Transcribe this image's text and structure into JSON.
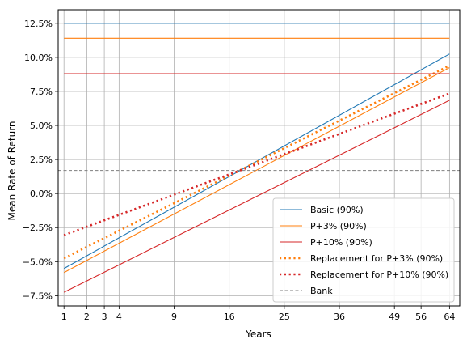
{
  "chart_data": {
    "type": "line",
    "xlabel": "Years",
    "ylabel": "Mean Rate of Return",
    "x_scale": "sqrt",
    "xlim": [
      0.8,
      67
    ],
    "ylim": [
      -8.25,
      13.5
    ],
    "grid": true,
    "legend_position": "lower-right",
    "x_ticks": [
      1,
      2,
      3,
      4,
      9,
      16,
      25,
      36,
      49,
      56,
      64
    ],
    "x_tick_labels": [
      "1",
      "2",
      "3",
      "4",
      "9",
      "16",
      "25",
      "36",
      "49",
      "56",
      "64"
    ],
    "y_ticks": [
      -7.5,
      -5.0,
      -2.5,
      0.0,
      2.5,
      5.0,
      7.5,
      10.0,
      12.5
    ],
    "y_tick_labels": [
      "−7.5%",
      "−5.0%",
      "−2.5%",
      "0.0%",
      "2.5%",
      "5.0%",
      "7.5%",
      "10.0%",
      "12.5%"
    ],
    "series": [
      {
        "name": "Basic (90%)",
        "color": "#1f77b4",
        "style": "solid",
        "x": [
          1,
          64
        ],
        "y": [
          -5.5,
          10.25
        ]
      },
      {
        "name": "P+3% (90%)",
        "color": "#ff7f0e",
        "style": "solid",
        "x": [
          1,
          64
        ],
        "y": [
          -5.8,
          9.25
        ]
      },
      {
        "name": "P+10% (90%)",
        "color": "#d62728",
        "style": "solid",
        "x": [
          1,
          64
        ],
        "y": [
          -7.25,
          6.85
        ]
      },
      {
        "name": "Replacement for P+3% (90%)",
        "color": "#ff7f0e",
        "style": "dotted",
        "x": [
          1,
          64
        ],
        "y": [
          -4.75,
          9.4
        ]
      },
      {
        "name": "Replacement for P+10% (90%)",
        "color": "#d62728",
        "style": "dotted",
        "x": [
          1,
          64
        ],
        "y": [
          -3.05,
          7.35
        ]
      },
      {
        "name": "Bank",
        "color": "#7f7f7f",
        "style": "dashed",
        "x": [
          0.8,
          67
        ],
        "y": [
          1.7,
          1.7
        ]
      },
      {
        "name": "",
        "color": "#1f77b4",
        "style": "solid",
        "x": [
          1,
          64
        ],
        "y": [
          12.5,
          12.5
        ]
      },
      {
        "name": "",
        "color": "#ff7f0e",
        "style": "solid",
        "x": [
          1,
          64
        ],
        "y": [
          11.4,
          11.4
        ]
      },
      {
        "name": "",
        "color": "#d62728",
        "style": "solid",
        "x": [
          1,
          64
        ],
        "y": [
          8.8,
          8.8
        ]
      }
    ]
  }
}
